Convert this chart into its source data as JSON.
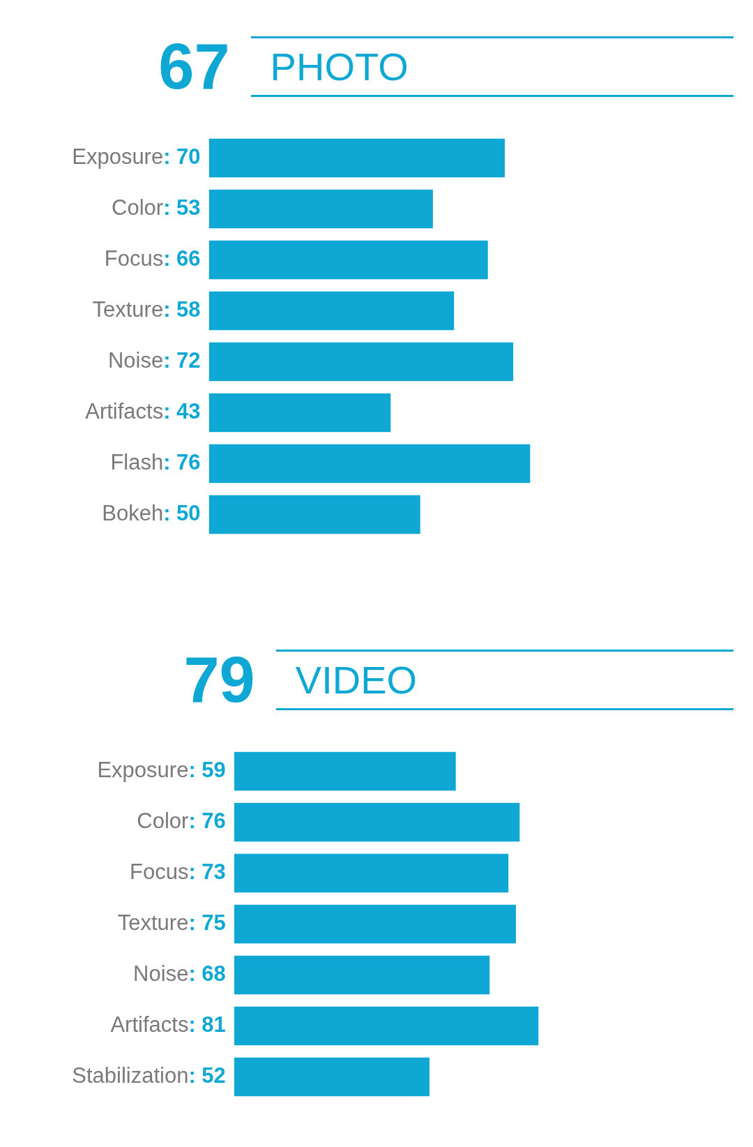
{
  "chart_data": [
    {
      "type": "bar",
      "orientation": "horizontal",
      "title": "PHOTO",
      "annotations": [
        "67"
      ],
      "categories": [
        "Exposure",
        "Color",
        "Focus",
        "Texture",
        "Noise",
        "Artifacts",
        "Flash",
        "Bokeh"
      ],
      "values": [
        70,
        53,
        66,
        58,
        72,
        43,
        76,
        50
      ],
      "value_labels": [
        ": 70",
        ": 53",
        ": 66",
        ": 58",
        ": 72",
        ": 43",
        ": 76",
        ": 50"
      ],
      "color": "#0fa8d5"
    },
    {
      "type": "bar",
      "orientation": "horizontal",
      "title": "VIDEO",
      "annotations": [
        "79"
      ],
      "categories": [
        "Exposure",
        "Color",
        "Focus",
        "Texture",
        "Noise",
        "Artifacts",
        "Stabilization"
      ],
      "values": [
        59,
        76,
        73,
        75,
        68,
        81,
        52
      ],
      "value_labels": [
        ": 59",
        ": 76",
        ": 73",
        ": 75",
        ": 68",
        ": 81",
        ": 52"
      ],
      "color": "#0fa8d5"
    }
  ]
}
